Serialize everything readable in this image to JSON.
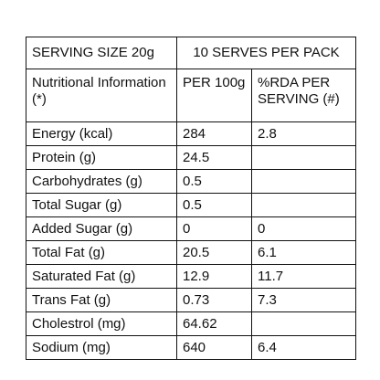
{
  "header": {
    "serving_size": "SERVING SIZE 20g",
    "serves_per_pack": "10 SERVES PER PACK"
  },
  "table": {
    "columns": [
      "Nutritional Information (*)",
      "PER 100g",
      "%RDA PER SERVING (#)"
    ],
    "rows": [
      [
        "Energy (kcal)",
        284,
        2.8
      ],
      [
        "Protein (g)",
        24.5,
        null
      ],
      [
        "Carbohydrates (g)",
        0.5,
        null
      ],
      [
        "Total Sugar (g)",
        0.5,
        null
      ],
      [
        "Added Sugar (g)",
        0,
        0
      ],
      [
        "Total Fat (g)",
        20.5,
        6.1
      ],
      [
        "Saturated Fat (g)",
        12.9,
        11.7
      ],
      [
        "Trans Fat (g)",
        0.73,
        7.3
      ],
      [
        "Cholestrol (mg)",
        64.62,
        null
      ],
      [
        "Sodium (mg)",
        640,
        6.4
      ]
    ]
  }
}
